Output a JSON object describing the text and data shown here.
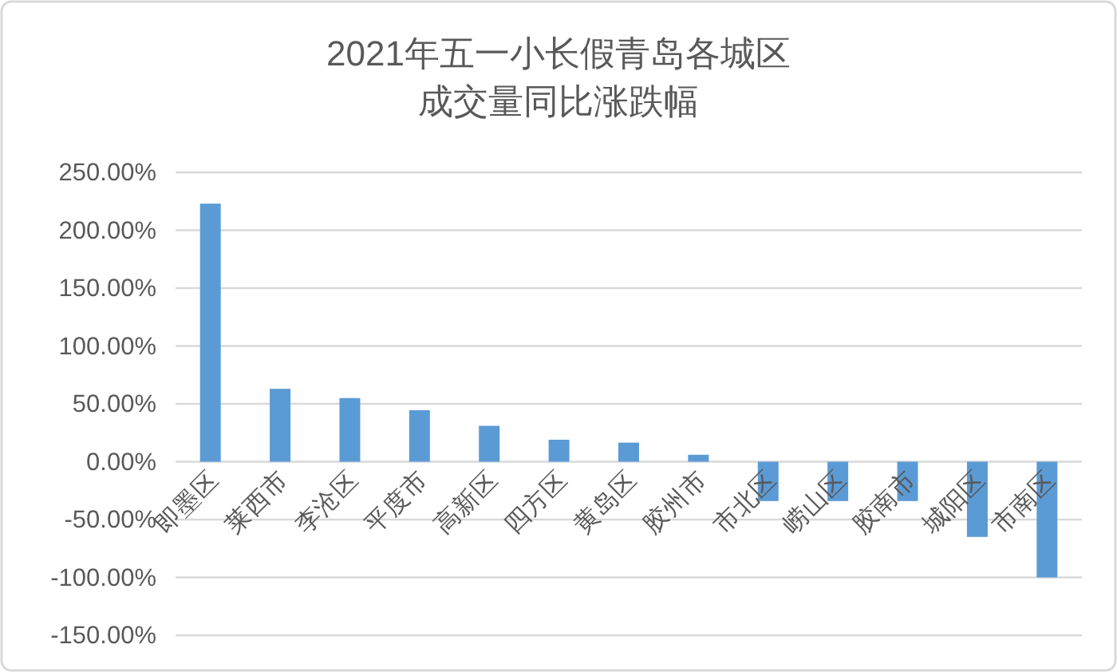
{
  "chart_data": {
    "type": "bar",
    "title": "2021年五一小长假青岛各城区成交量同比涨跌幅",
    "categories": [
      "即墨区",
      "莱西市",
      "李沧区",
      "平度市",
      "高新区",
      "四方区",
      "黄岛区",
      "胶州市",
      "市北区",
      "崂山区",
      "胶南市",
      "城阳区",
      "市南区"
    ],
    "values": [
      223,
      63,
      55,
      44.5,
      31,
      19,
      16.5,
      6,
      -34,
      -34,
      -34,
      -65,
      -100
    ],
    "color": "#5b9bd5",
    "ylim": [
      -150,
      250
    ],
    "yticks": [
      {
        "value": 250,
        "label": "250.00%"
      },
      {
        "value": 200,
        "label": "200.00%"
      },
      {
        "value": 150,
        "label": "150.00%"
      },
      {
        "value": 100,
        "label": "100.00%"
      },
      {
        "value": 50,
        "label": "50.00%"
      },
      {
        "value": 0,
        "label": "0.00%"
      },
      {
        "value": -50,
        "label": "-50.00%"
      },
      {
        "value": -100,
        "label": "-100.00%"
      },
      {
        "value": -150,
        "label": "-150.00%"
      }
    ],
    "grid": "y"
  }
}
